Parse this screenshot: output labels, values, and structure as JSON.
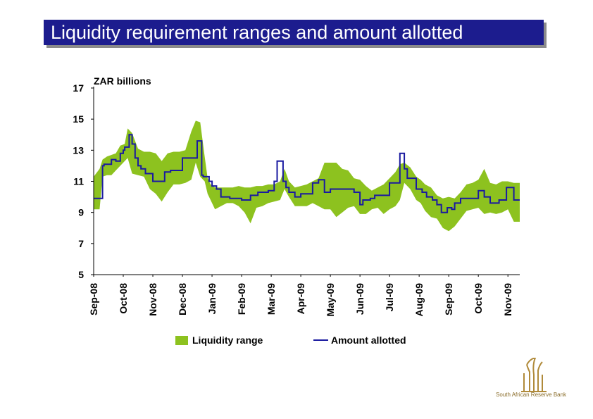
{
  "title": "Liquidity requirement ranges and amount allotted",
  "brand": {
    "name": "South African Reserve Bank"
  },
  "colors": {
    "title_bg": "#1c1c8e",
    "range": "#8dc21f",
    "line": "#1a1aa0",
    "logo": "#b08a3a"
  },
  "chart_data": {
    "type": "area",
    "title": "",
    "ylabel": "ZAR billions",
    "xlabel": "",
    "ylim": [
      5,
      17
    ],
    "yticks": [
      5,
      7,
      9,
      11,
      13,
      15,
      17
    ],
    "xlim": [
      0,
      14.4
    ],
    "categories": [
      "Sep-08",
      "Oct-08",
      "Nov-08",
      "Dec-08",
      "Jan-09",
      "Feb-09",
      "Mar-09",
      "Apr-09",
      "May-09",
      "Jun-09",
      "Jul-09",
      "Aug-09",
      "Sep-09",
      "Oct-09",
      "Nov-09"
    ],
    "legend": [
      "Liquidity range",
      "Amount allotted"
    ],
    "legend_position": "bottom",
    "series": [
      {
        "name": "Liquidity range",
        "kind": "band",
        "x": [
          0.0,
          0.2,
          0.3,
          0.45,
          0.6,
          0.75,
          0.9,
          1.05,
          1.15,
          1.3,
          1.5,
          1.7,
          1.9,
          2.1,
          2.3,
          2.5,
          2.7,
          2.9,
          3.1,
          3.3,
          3.45,
          3.6,
          3.75,
          3.85,
          3.95,
          4.1,
          4.3,
          4.5,
          4.7,
          4.9,
          5.1,
          5.3,
          5.5,
          5.7,
          5.9,
          6.1,
          6.3,
          6.45,
          6.6,
          6.8,
          7.0,
          7.2,
          7.4,
          7.6,
          7.8,
          8.0,
          8.2,
          8.4,
          8.6,
          8.8,
          9.0,
          9.2,
          9.4,
          9.6,
          9.8,
          10.0,
          10.2,
          10.35,
          10.5,
          10.7,
          10.9,
          11.05,
          11.2,
          11.4,
          11.6,
          11.8,
          12.0,
          12.2,
          12.4,
          12.6,
          12.8,
          13.0,
          13.2,
          13.4,
          13.6,
          13.8,
          14.0,
          14.2,
          14.4
        ],
        "low": [
          9.2,
          9.2,
          11.3,
          11.4,
          11.4,
          11.7,
          12.0,
          12.3,
          12.5,
          11.5,
          11.4,
          11.3,
          10.5,
          10.2,
          9.7,
          10.3,
          10.8,
          10.8,
          10.9,
          11.1,
          12.2,
          11.3,
          11.0,
          10.2,
          9.8,
          9.2,
          9.4,
          9.6,
          9.6,
          9.4,
          9.0,
          8.3,
          9.3,
          9.4,
          9.6,
          9.7,
          9.8,
          10.5,
          10.0,
          9.4,
          9.4,
          9.4,
          9.6,
          9.4,
          9.2,
          9.2,
          8.7,
          9.0,
          9.3,
          9.4,
          8.9,
          8.9,
          9.2,
          9.3,
          8.9,
          9.2,
          9.4,
          9.8,
          10.9,
          10.5,
          9.8,
          9.6,
          9.1,
          8.7,
          8.6,
          8.0,
          7.8,
          8.1,
          8.6,
          9.1,
          9.2,
          9.3,
          8.9,
          9.0,
          8.9,
          9.0,
          9.2,
          8.4,
          8.4
        ],
        "high": [
          11.3,
          11.8,
          12.4,
          12.6,
          12.7,
          12.8,
          13.3,
          13.4,
          14.4,
          14.1,
          13.1,
          12.9,
          12.9,
          12.8,
          12.3,
          12.8,
          12.9,
          12.9,
          13.0,
          14.2,
          14.9,
          14.8,
          12.6,
          11.2,
          10.8,
          10.6,
          10.6,
          10.6,
          10.6,
          10.7,
          10.6,
          10.6,
          10.7,
          10.7,
          10.8,
          10.8,
          11.0,
          11.8,
          11.0,
          10.6,
          10.7,
          10.8,
          11.0,
          11.2,
          12.2,
          12.2,
          12.2,
          11.8,
          11.7,
          11.2,
          11.1,
          10.7,
          10.4,
          10.6,
          10.8,
          11.2,
          11.6,
          12.1,
          12.2,
          11.9,
          11.3,
          11.1,
          10.8,
          10.6,
          10.1,
          9.9,
          10.0,
          9.9,
          10.3,
          10.8,
          10.9,
          11.1,
          11.8,
          10.9,
          10.8,
          11.0,
          11.0,
          10.9,
          10.9
        ]
      },
      {
        "name": "Amount allotted",
        "kind": "step",
        "x": [
          0.0,
          0.3,
          0.35,
          0.6,
          0.75,
          0.9,
          1.0,
          1.05,
          1.2,
          1.3,
          1.4,
          1.5,
          1.6,
          1.75,
          2.0,
          2.4,
          2.6,
          3.0,
          3.5,
          3.65,
          3.7,
          3.9,
          4.0,
          4.15,
          4.3,
          4.6,
          4.9,
          5.0,
          5.3,
          5.55,
          5.9,
          6.1,
          6.2,
          6.4,
          6.5,
          6.6,
          6.8,
          7.0,
          7.4,
          7.6,
          7.8,
          8.0,
          8.8,
          9.0,
          9.1,
          9.35,
          9.5,
          10.0,
          10.35,
          10.5,
          10.6,
          10.9,
          11.1,
          11.25,
          11.45,
          11.6,
          11.75,
          11.95,
          12.1,
          12.2,
          12.4,
          12.65,
          13.0,
          13.2,
          13.4,
          13.7,
          13.95,
          14.2,
          14.4
        ],
        "y": [
          9.9,
          12.0,
          12.1,
          12.4,
          12.3,
          12.8,
          13.0,
          13.2,
          14.0,
          13.4,
          12.5,
          12.0,
          11.8,
          11.5,
          11.0,
          11.6,
          11.7,
          12.5,
          13.6,
          11.4,
          11.3,
          11.0,
          10.7,
          10.5,
          10.0,
          9.9,
          9.9,
          9.8,
          10.1,
          10.3,
          10.4,
          11.0,
          12.3,
          11.0,
          10.6,
          10.3,
          10.0,
          10.2,
          10.9,
          11.1,
          10.3,
          10.5,
          10.3,
          9.5,
          9.8,
          9.9,
          10.1,
          10.9,
          12.8,
          11.8,
          11.2,
          10.5,
          10.3,
          10.0,
          9.8,
          9.5,
          9.0,
          9.3,
          9.2,
          9.6,
          9.9,
          9.9,
          10.4,
          10.0,
          9.6,
          9.8,
          10.6,
          9.8,
          9.8
        ]
      }
    ]
  }
}
